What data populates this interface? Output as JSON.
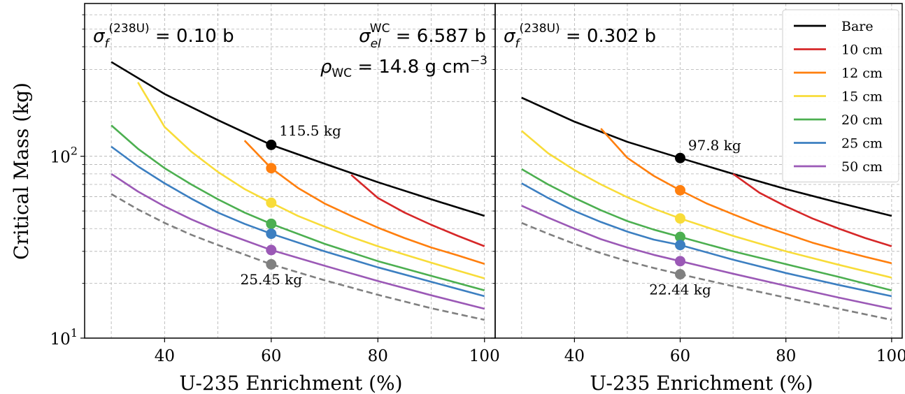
{
  "chart_data": {
    "type": "line",
    "ylabel": "Critical Mass (kg)",
    "xlabel": "U-235 Enrichment (%)",
    "xlim": [
      25,
      102
    ],
    "ylim_log10": [
      1,
      2.84
    ],
    "yscale": "log",
    "grid": true,
    "x_ticks": [
      "40",
      "60",
      "80",
      "100"
    ],
    "y_ticks": [
      {
        "base": "10",
        "exp": "1"
      },
      {
        "base": "10",
        "exp": "2"
      }
    ],
    "colors": {
      "Bare": "#000000",
      "10 cm": "#d62728",
      "12 cm": "#ff7f0e",
      "15 cm": "#f8dc39",
      "20 cm": "#4caf50",
      "25 cm": "#3c7fc1",
      "50 cm": "#9b59b6",
      "dashed": "#808080"
    },
    "legend": {
      "location": "upper-right",
      "entries": [
        "Bare",
        "10 cm",
        "12 cm",
        "15 cm",
        "20 cm",
        "25 cm",
        "50 cm"
      ]
    },
    "panels": [
      {
        "sigma_f_value": "= 0.10 b",
        "annotations": {
          "sigma_el_value": "= 6.587 b",
          "rho_value": "= 14.8 g cm",
          "rho_exp": "−3"
        },
        "series": [
          {
            "name": "Bare",
            "x": [
              30,
              40,
              50,
              60,
              70,
              80,
              90,
              100
            ],
            "y": [
              330,
              220,
              158,
              115.5,
              91,
              72,
              58,
              47
            ]
          },
          {
            "name": "10 cm",
            "x": [
              75,
              80,
              85,
              90,
              95,
              100
            ],
            "y": [
              79,
              59,
              49,
              42,
              36.5,
              32
            ]
          },
          {
            "name": "12 cm",
            "x": [
              55,
              60,
              65,
              70,
              75,
              80,
              85,
              90,
              95,
              100
            ],
            "y": [
              122,
              86,
              67,
              55,
              47,
              40.5,
              35.5,
              31.5,
              28.5,
              25.6
            ]
          },
          {
            "name": "15 cm",
            "x": [
              35,
              40,
              45,
              50,
              55,
              60,
              65,
              70,
              75,
              80,
              85,
              90,
              95,
              100
            ],
            "y": [
              255,
              145,
              106,
              82,
              66,
              55.5,
              47,
              41,
              36,
              32,
              28.8,
              26,
              23.5,
              21.3
            ]
          },
          {
            "name": "20 cm",
            "x": [
              30,
              35,
              40,
              45,
              50,
              55,
              60,
              70,
              80,
              90,
              100
            ],
            "y": [
              148,
              110,
              86,
              70,
              58,
              49,
              42.5,
              33,
              26.5,
              22,
              18.3
            ]
          },
          {
            "name": "25 cm",
            "x": [
              30,
              35,
              40,
              45,
              50,
              55,
              60,
              70,
              80,
              90,
              100
            ],
            "y": [
              113,
              88,
              71,
              58.5,
              49,
              42.5,
              37.5,
              30,
              24.5,
              20.4,
              17
            ]
          },
          {
            "name": "50 cm",
            "x": [
              30,
              35,
              40,
              45,
              50,
              55,
              60,
              70,
              80,
              90,
              100
            ],
            "y": [
              80,
              64,
              53,
              45,
              39,
              34.5,
              30.5,
              25,
              20.6,
              17.2,
              14.5
            ]
          },
          {
            "name": "",
            "dashed": true,
            "x": [
              30,
              35,
              40,
              45,
              50,
              55,
              60,
              70,
              80,
              90,
              100
            ],
            "y": [
              62,
              51,
              43,
              37,
              32.5,
              28.8,
              25.45,
              20.8,
              17.3,
              14.6,
              12.6
            ]
          }
        ],
        "markers": [
          {
            "series": "Bare",
            "x": 60,
            "y": 115.5
          },
          {
            "series": "12 cm",
            "x": 60,
            "y": 86
          },
          {
            "series": "15 cm",
            "x": 60,
            "y": 55.5
          },
          {
            "series": "20 cm",
            "x": 60,
            "y": 42.5
          },
          {
            "series": "25 cm",
            "x": 60,
            "y": 37.5
          },
          {
            "series": "50 cm",
            "x": 60,
            "y": 30.5
          },
          {
            "series": "dashed",
            "x": 60,
            "y": 25.45
          }
        ],
        "labels": [
          {
            "text": "115.5 kg",
            "x": 61.5,
            "y": 130,
            "anchor": "start"
          },
          {
            "text": "25.45 kg",
            "x": 60,
            "y": 19.8,
            "anchor": "middle"
          }
        ]
      },
      {
        "sigma_f_value": "= 0.302 b",
        "series": [
          {
            "name": "Bare",
            "x": [
              30,
              40,
              50,
              60,
              70,
              80,
              90,
              100
            ],
            "y": [
              210,
              155,
              120,
              97.8,
              80,
              66,
              55.5,
              47
            ]
          },
          {
            "name": "10 cm",
            "x": [
              70,
              75,
              80,
              85,
              90,
              95,
              100
            ],
            "y": [
              80,
              63,
              53,
              45.5,
              40,
              35.5,
              32
            ]
          },
          {
            "name": "12 cm",
            "x": [
              45,
              50,
              55,
              60,
              65,
              70,
              75,
              80,
              85,
              90,
              95,
              100
            ],
            "y": [
              142,
              98,
              78,
              65,
              55,
              48,
              42,
              37.5,
              33.5,
              30.5,
              28,
              25.8
            ]
          },
          {
            "name": "15 cm",
            "x": [
              30,
              35,
              40,
              45,
              50,
              55,
              60,
              70,
              80,
              90,
              100
            ],
            "y": [
              138,
              104,
              84,
              70,
              59.5,
              51.5,
              45.5,
              36.5,
              30,
              25.3,
              21.5
            ]
          },
          {
            "name": "20 cm",
            "x": [
              30,
              35,
              40,
              45,
              50,
              55,
              60,
              70,
              80,
              90,
              100
            ],
            "y": [
              85,
              70,
              59,
              50.5,
              44,
              39.5,
              36,
              30,
              25.5,
              21.7,
              18.3
            ]
          },
          {
            "name": "25 cm",
            "x": [
              30,
              35,
              40,
              45,
              50,
              55,
              60,
              70,
              80,
              90,
              100
            ],
            "y": [
              71,
              59,
              50,
              43.5,
              38.5,
              34.8,
              32.5,
              27,
              22.8,
              19.6,
              17
            ]
          },
          {
            "name": "50 cm",
            "x": [
              30,
              35,
              40,
              45,
              50,
              55,
              60,
              70,
              80,
              90,
              100
            ],
            "y": [
              53.5,
              46,
              40,
              35,
              31.5,
              28.7,
              26.5,
              22.6,
              19.4,
              16.7,
              14.5
            ]
          },
          {
            "name": "",
            "dashed": true,
            "x": [
              30,
              35,
              40,
              45,
              50,
              55,
              60,
              70,
              80,
              90,
              100
            ],
            "y": [
              43,
              37.5,
              33,
              29.3,
              26.5,
              24.3,
              22.44,
              19.3,
              16.7,
              14.5,
              12.6
            ]
          }
        ],
        "markers": [
          {
            "series": "Bare",
            "x": 60,
            "y": 97.8
          },
          {
            "series": "12 cm",
            "x": 60,
            "y": 65
          },
          {
            "series": "15 cm",
            "x": 60,
            "y": 45.5
          },
          {
            "series": "20 cm",
            "x": 60,
            "y": 36
          },
          {
            "series": "25 cm",
            "x": 60,
            "y": 32.5
          },
          {
            "series": "50 cm",
            "x": 60,
            "y": 26.5
          },
          {
            "series": "dashed",
            "x": 60,
            "y": 22.44
          }
        ],
        "labels": [
          {
            "text": "97.8 kg",
            "x": 61.5,
            "y": 108,
            "anchor": "start"
          },
          {
            "text": "22.44 kg",
            "x": 60,
            "y": 17.4,
            "anchor": "middle"
          }
        ]
      }
    ]
  }
}
